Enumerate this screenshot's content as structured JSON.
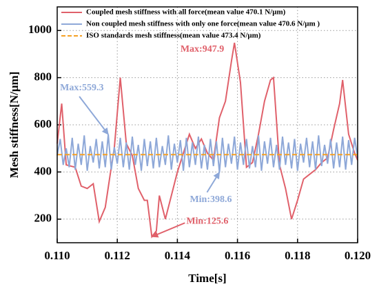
{
  "chart_data": {
    "type": "line",
    "xlabel": "Time[s]",
    "ylabel": "Mesh stiffness[N/μm]",
    "xlim": [
      0.11,
      0.12
    ],
    "xticks": [
      {
        "value": 0.11,
        "label": "0.110"
      },
      {
        "value": 0.112,
        "label": "0.112"
      },
      {
        "value": 0.114,
        "label": "0.114"
      },
      {
        "value": 0.116,
        "label": "0.116"
      },
      {
        "value": 0.118,
        "label": "0.118"
      },
      {
        "value": 0.12,
        "label": "0.120"
      }
    ],
    "ylim": [
      100,
      1100
    ],
    "yticks": [
      200,
      400,
      600,
      800,
      1000
    ],
    "grid": true,
    "legend": "upper left",
    "series": [
      {
        "name": "Coupled mesh stiffness with all force(mean value 470.1 N/μm)",
        "color": "#e0606a",
        "dash": false,
        "x": [
          0.11,
          0.11015,
          0.1103,
          0.1106,
          0.1108,
          0.111,
          0.1112,
          0.1114,
          0.1116,
          0.1118,
          0.1119,
          0.1121,
          0.1123,
          0.1125,
          0.1127,
          0.1129,
          0.113,
          0.11315,
          0.1133,
          0.1134,
          0.1136,
          0.1138,
          0.114,
          0.1142,
          0.1144,
          0.1146,
          0.1148,
          0.115,
          0.1152,
          0.1154,
          0.1156,
          0.1158,
          0.1159,
          0.1161,
          0.1163,
          0.1165,
          0.1167,
          0.1169,
          0.1171,
          0.1172,
          0.1174,
          0.1176,
          0.1178,
          0.118,
          0.1182,
          0.1184,
          0.1186,
          0.1188,
          0.119,
          0.1192,
          0.1194,
          0.1195,
          0.1197,
          0.1199,
          0.12
        ],
        "values": [
          520,
          690,
          430,
          420,
          340,
          330,
          350,
          190,
          250,
          420,
          500,
          800,
          520,
          470,
          330,
          280,
          280,
          125.6,
          150,
          300,
          200,
          300,
          400,
          480,
          560,
          500,
          540,
          480,
          450,
          630,
          700,
          870,
          947.9,
          780,
          420,
          440,
          560,
          700,
          790,
          800,
          430,
          330,
          200,
          280,
          370,
          390,
          410,
          440,
          460,
          580,
          690,
          790,
          560,
          480,
          450
        ]
      },
      {
        "name": "Non coupled mesh stiffness with only one force(mean value 470.6 N/μm )",
        "color": "#8ea8d8",
        "dash": false,
        "x": [
          0.11,
          0.1101,
          0.1102,
          0.1103,
          0.1104,
          0.1105,
          0.1106,
          0.1107,
          0.1108,
          0.1109,
          0.111,
          0.1111,
          0.1112,
          0.1113,
          0.1114,
          0.1115,
          0.1116,
          0.1117,
          0.1118,
          0.1119,
          0.112,
          0.1121,
          0.1122,
          0.1123,
          0.1124,
          0.1125,
          0.1126,
          0.1127,
          0.1128,
          0.1129,
          0.113,
          0.1131,
          0.1132,
          0.1133,
          0.1134,
          0.1135,
          0.1136,
          0.1137,
          0.1138,
          0.1139,
          0.114,
          0.1141,
          0.1142,
          0.1143,
          0.1144,
          0.1145,
          0.1146,
          0.1147,
          0.1148,
          0.1149,
          0.115,
          0.1151,
          0.1152,
          0.1153,
          0.1154,
          0.1155,
          0.1156,
          0.1157,
          0.1158,
          0.1159,
          0.116,
          0.1161,
          0.1162,
          0.1163,
          0.1164,
          0.1165,
          0.1166,
          0.1167,
          0.1168,
          0.1169,
          0.117,
          0.1171,
          0.1172,
          0.1173,
          0.1174,
          0.1175,
          0.1176,
          0.1177,
          0.1178,
          0.1179,
          0.118,
          0.1181,
          0.1182,
          0.1183,
          0.1184,
          0.1185,
          0.1186,
          0.1187,
          0.1188,
          0.1189,
          0.119,
          0.1191,
          0.1192,
          0.1193,
          0.1194,
          0.1195,
          0.1196,
          0.1197,
          0.1198,
          0.1199,
          0.12
        ],
        "values": [
          470,
          540,
          430,
          500,
          420,
          545,
          410,
          520,
          430,
          555,
          405,
          510,
          440,
          540,
          415,
          530,
          420,
          559.3,
          410,
          505,
          435,
          545,
          420,
          525,
          410,
          550,
          430,
          515,
          405,
          540,
          425,
          530,
          415,
          545,
          420,
          510,
          430,
          555,
          410,
          520,
          440,
          535,
          405,
          545,
          420,
          525,
          430,
          550,
          415,
          515,
          410,
          540,
          425,
          530,
          398.6,
          545,
          420,
          520,
          435,
          550,
          410,
          525,
          430,
          540,
          415,
          510,
          420,
          555,
          405,
          530,
          435,
          545,
          420,
          515,
          410,
          550,
          430,
          525,
          415,
          540,
          405,
          520,
          440,
          545,
          420,
          530,
          410,
          555,
          425,
          515,
          435,
          540,
          415,
          525,
          420,
          550,
          410,
          535,
          430,
          545,
          460
        ]
      },
      {
        "name": "ISO standards mesh stiffness(mean value 473.4 N/μm)",
        "color": "#f5a023",
        "dash": true,
        "x": [
          0.11,
          0.12
        ],
        "values": [
          473.4,
          473.4
        ]
      }
    ],
    "annotations": [
      {
        "text": "Max:947.9",
        "color": "#e0606a",
        "x": 0.1159,
        "y": 947.9
      },
      {
        "text": "Max:559.3",
        "color": "#8ea8d8",
        "x": 0.1117,
        "y": 559.3
      },
      {
        "text": "Min:398.6",
        "color": "#8ea8d8",
        "x": 0.1154,
        "y": 398.6
      },
      {
        "text": "Min:125.6",
        "color": "#e0606a",
        "x": 0.11315,
        "y": 125.6
      }
    ]
  }
}
